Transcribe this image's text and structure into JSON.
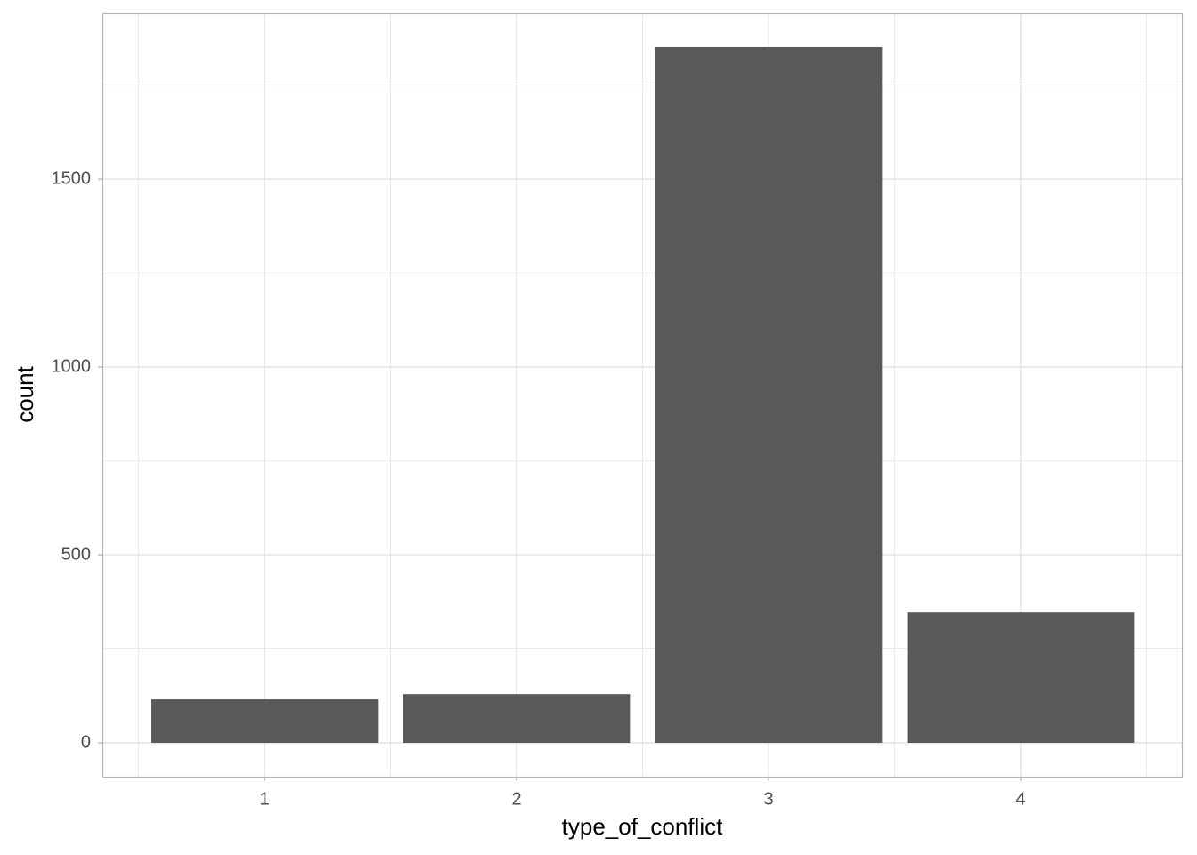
{
  "chart_data": {
    "type": "bar",
    "x_label": "type_of_conflict",
    "y_label": "count",
    "categories": [
      "1",
      "2",
      "3",
      "4"
    ],
    "values": [
      116,
      130,
      1851,
      348
    ],
    "color": "#595959",
    "ylim": [
      -90,
      1941
    ],
    "yticks": [
      0,
      500,
      1000,
      1500
    ],
    "grid": true
  }
}
